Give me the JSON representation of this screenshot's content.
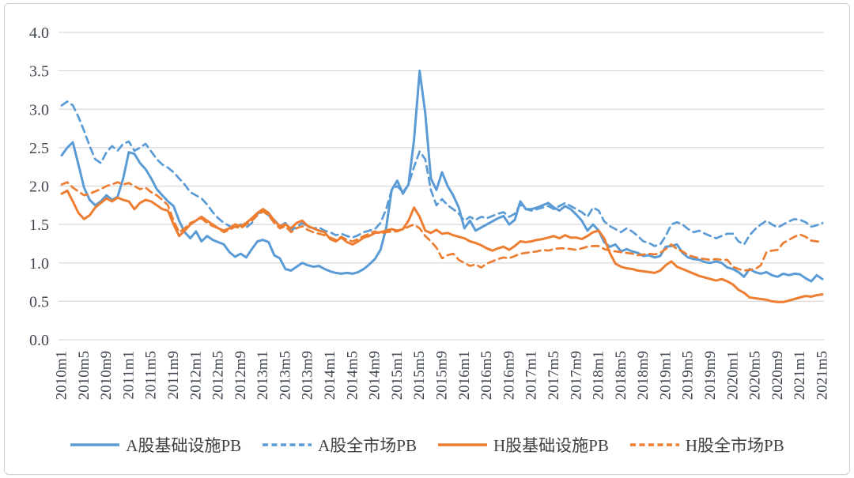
{
  "chart_data": {
    "type": "line",
    "title": "",
    "x_start": "2010m1",
    "x_end": "2021m5",
    "n_points": 137,
    "x_tick_labels": [
      "2010m1",
      "2010m5",
      "2010m9",
      "2011m1",
      "2011m5",
      "2011m9",
      "2012m1",
      "2012m5",
      "2012m9",
      "2013m1",
      "2013m5",
      "2013m9",
      "2014m1",
      "2014m5",
      "2014m9",
      "2015m1",
      "2015m5",
      "2015m9",
      "2016m1",
      "2016m5",
      "2016m9",
      "2017m1",
      "2017m5",
      "2017m9",
      "2018m1",
      "2018m5",
      "2018m9",
      "2019m1",
      "2019m5",
      "2019m9",
      "2020m1",
      "2020m5",
      "2020m9",
      "2021m1",
      "2021m5"
    ],
    "y_tick_labels": [
      "0.0",
      "0.5",
      "1.0",
      "1.5",
      "2.0",
      "2.5",
      "3.0",
      "3.5",
      "4.0"
    ],
    "ylim": [
      0.0,
      4.0
    ],
    "grid": "horizontal",
    "gridline_color": "#d9d9d9",
    "axis_text_color": "#3f4650",
    "legend_position": "bottom",
    "series": [
      {
        "name": "A股基础设施PB",
        "color": "#5B9BD5",
        "dash": "solid",
        "values": [
          2.4,
          2.5,
          2.57,
          2.28,
          1.98,
          1.82,
          1.75,
          1.8,
          1.88,
          1.82,
          1.86,
          2.1,
          2.44,
          2.42,
          2.3,
          2.22,
          2.1,
          1.96,
          1.88,
          1.8,
          1.74,
          1.55,
          1.4,
          1.32,
          1.41,
          1.28,
          1.35,
          1.3,
          1.27,
          1.24,
          1.14,
          1.08,
          1.12,
          1.07,
          1.18,
          1.28,
          1.3,
          1.27,
          1.1,
          1.06,
          0.92,
          0.9,
          0.95,
          1.0,
          0.97,
          0.95,
          0.96,
          0.92,
          0.89,
          0.87,
          0.86,
          0.87,
          0.86,
          0.88,
          0.92,
          0.98,
          1.05,
          1.17,
          1.45,
          1.95,
          2.07,
          1.9,
          2.02,
          2.6,
          3.5,
          2.95,
          2.1,
          1.95,
          2.18,
          2.0,
          1.88,
          1.72,
          1.45,
          1.55,
          1.42,
          1.46,
          1.5,
          1.54,
          1.58,
          1.61,
          1.5,
          1.56,
          1.8,
          1.7,
          1.7,
          1.72,
          1.75,
          1.78,
          1.72,
          1.68,
          1.74,
          1.7,
          1.63,
          1.55,
          1.42,
          1.5,
          1.42,
          1.27,
          1.21,
          1.24,
          1.15,
          1.18,
          1.15,
          1.13,
          1.09,
          1.1,
          1.07,
          1.09,
          1.21,
          1.22,
          1.24,
          1.13,
          1.07,
          1.05,
          1.04,
          1.01,
          1.0,
          1.02,
          1.0,
          0.94,
          0.92,
          0.88,
          0.82,
          0.92,
          0.88,
          0.86,
          0.88,
          0.84,
          0.82,
          0.86,
          0.84,
          0.86,
          0.85,
          0.8,
          0.76,
          0.84,
          0.79
        ]
      },
      {
        "name": "A股全市场PB",
        "color": "#5B9BD5",
        "dash": "dashed",
        "values": [
          3.05,
          3.1,
          3.05,
          2.9,
          2.72,
          2.52,
          2.35,
          2.3,
          2.44,
          2.52,
          2.46,
          2.55,
          2.58,
          2.46,
          2.5,
          2.55,
          2.45,
          2.35,
          2.28,
          2.24,
          2.18,
          2.1,
          2.02,
          1.92,
          1.88,
          1.84,
          1.76,
          1.66,
          1.58,
          1.52,
          1.48,
          1.45,
          1.5,
          1.46,
          1.52,
          1.64,
          1.67,
          1.62,
          1.56,
          1.48,
          1.52,
          1.42,
          1.47,
          1.52,
          1.47,
          1.45,
          1.46,
          1.42,
          1.4,
          1.36,
          1.38,
          1.35,
          1.33,
          1.36,
          1.4,
          1.42,
          1.44,
          1.52,
          1.7,
          1.95,
          2.0,
          1.92,
          2.02,
          2.25,
          2.45,
          2.35,
          1.95,
          1.75,
          1.83,
          1.75,
          1.7,
          1.64,
          1.55,
          1.6,
          1.56,
          1.6,
          1.58,
          1.61,
          1.64,
          1.66,
          1.6,
          1.64,
          1.76,
          1.7,
          1.68,
          1.7,
          1.72,
          1.74,
          1.7,
          1.74,
          1.78,
          1.74,
          1.7,
          1.66,
          1.6,
          1.72,
          1.68,
          1.54,
          1.48,
          1.44,
          1.4,
          1.45,
          1.41,
          1.35,
          1.28,
          1.26,
          1.22,
          1.24,
          1.35,
          1.5,
          1.53,
          1.5,
          1.44,
          1.4,
          1.42,
          1.38,
          1.35,
          1.32,
          1.35,
          1.38,
          1.38,
          1.28,
          1.24,
          1.36,
          1.44,
          1.5,
          1.55,
          1.5,
          1.46,
          1.5,
          1.54,
          1.57,
          1.56,
          1.53,
          1.47,
          1.49,
          1.52
        ]
      },
      {
        "name": "H股基础设施PB",
        "color": "#ED7D31",
        "dash": "solid",
        "values": [
          1.9,
          1.94,
          1.8,
          1.65,
          1.57,
          1.62,
          1.72,
          1.78,
          1.84,
          1.8,
          1.85,
          1.82,
          1.8,
          1.7,
          1.78,
          1.82,
          1.8,
          1.75,
          1.7,
          1.68,
          1.5,
          1.35,
          1.42,
          1.5,
          1.55,
          1.6,
          1.55,
          1.5,
          1.45,
          1.42,
          1.45,
          1.5,
          1.48,
          1.52,
          1.58,
          1.65,
          1.7,
          1.65,
          1.55,
          1.48,
          1.5,
          1.45,
          1.52,
          1.55,
          1.48,
          1.45,
          1.42,
          1.4,
          1.31,
          1.28,
          1.33,
          1.27,
          1.24,
          1.28,
          1.33,
          1.35,
          1.39,
          1.4,
          1.42,
          1.44,
          1.42,
          1.44,
          1.55,
          1.72,
          1.6,
          1.42,
          1.39,
          1.43,
          1.38,
          1.39,
          1.36,
          1.34,
          1.32,
          1.28,
          1.26,
          1.23,
          1.19,
          1.16,
          1.19,
          1.21,
          1.17,
          1.22,
          1.28,
          1.27,
          1.28,
          1.3,
          1.31,
          1.33,
          1.35,
          1.32,
          1.36,
          1.33,
          1.33,
          1.31,
          1.35,
          1.4,
          1.42,
          1.32,
          1.13,
          0.99,
          0.95,
          0.93,
          0.92,
          0.9,
          0.89,
          0.88,
          0.87,
          0.9,
          0.97,
          1.02,
          0.95,
          0.92,
          0.89,
          0.86,
          0.83,
          0.81,
          0.79,
          0.77,
          0.79,
          0.76,
          0.72,
          0.65,
          0.61,
          0.55,
          0.54,
          0.53,
          0.52,
          0.5,
          0.49,
          0.49,
          0.51,
          0.53,
          0.55,
          0.57,
          0.56,
          0.58,
          0.59
        ]
      },
      {
        "name": "H股全市场PB",
        "color": "#ED7D31",
        "dash": "dashed",
        "values": [
          2.02,
          2.05,
          1.98,
          1.93,
          1.88,
          1.9,
          1.93,
          1.96,
          2.0,
          2.02,
          2.05,
          2.02,
          2.04,
          2.0,
          1.96,
          1.98,
          1.92,
          1.88,
          1.82,
          1.75,
          1.55,
          1.4,
          1.45,
          1.52,
          1.55,
          1.58,
          1.52,
          1.48,
          1.45,
          1.4,
          1.43,
          1.47,
          1.45,
          1.5,
          1.55,
          1.62,
          1.67,
          1.62,
          1.52,
          1.45,
          1.48,
          1.4,
          1.45,
          1.48,
          1.43,
          1.4,
          1.38,
          1.36,
          1.33,
          1.3,
          1.34,
          1.3,
          1.28,
          1.31,
          1.35,
          1.38,
          1.41,
          1.38,
          1.4,
          1.41,
          1.41,
          1.44,
          1.47,
          1.5,
          1.45,
          1.35,
          1.28,
          1.2,
          1.06,
          1.1,
          1.12,
          1.04,
          1.0,
          0.96,
          0.98,
          0.94,
          0.99,
          1.02,
          1.05,
          1.07,
          1.06,
          1.09,
          1.12,
          1.13,
          1.14,
          1.15,
          1.17,
          1.16,
          1.18,
          1.19,
          1.19,
          1.18,
          1.17,
          1.19,
          1.21,
          1.22,
          1.22,
          1.18,
          1.16,
          1.15,
          1.14,
          1.13,
          1.12,
          1.1,
          1.11,
          1.12,
          1.11,
          1.13,
          1.18,
          1.24,
          1.18,
          1.15,
          1.1,
          1.08,
          1.06,
          1.05,
          1.04,
          1.05,
          1.04,
          1.04,
          0.95,
          0.92,
          0.9,
          0.91,
          0.92,
          0.97,
          1.14,
          1.16,
          1.17,
          1.26,
          1.3,
          1.34,
          1.37,
          1.34,
          1.29,
          1.28,
          1.27
        ]
      }
    ]
  }
}
